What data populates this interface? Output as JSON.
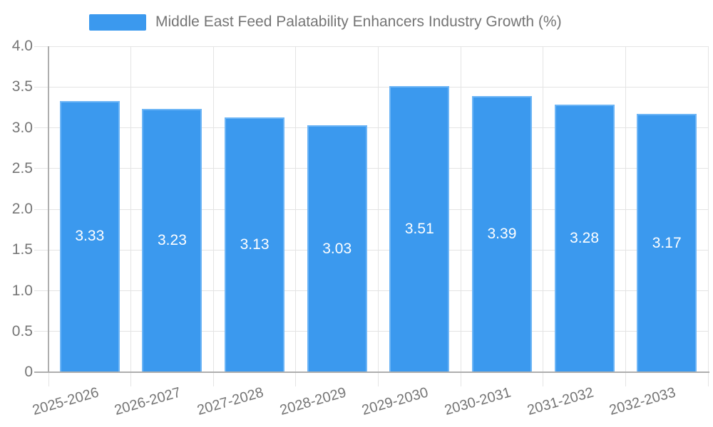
{
  "legend": {
    "label": "Middle East Feed Palatability Enhancers Industry Growth (%)"
  },
  "colors": {
    "bar_fill": "#3b99ee",
    "bar_border": "#6db5f6",
    "grid": "#e4e4e4",
    "axis": "#aeaeae",
    "text": "#757575",
    "value_label": "#ffffff",
    "background": "#ffffff"
  },
  "chart_data": {
    "type": "bar",
    "title": "Middle East Feed Palatability Enhancers Industry Growth (%)",
    "categories": [
      "2025-2026",
      "2026-2027",
      "2027-2028",
      "2028-2029",
      "2029-2030",
      "2030-2031",
      "2031-2032",
      "2032-2033"
    ],
    "values": [
      3.33,
      3.23,
      3.13,
      3.03,
      3.51,
      3.39,
      3.28,
      3.17
    ],
    "value_labels": [
      "3.33",
      "3.23",
      "3.13",
      "3.03",
      "3.51",
      "3.39",
      "3.28",
      "3.17"
    ],
    "xlabel": "",
    "ylabel": "",
    "ylim": [
      0,
      4
    ],
    "ytick_values": [
      0,
      0.5,
      1,
      1.5,
      2,
      2.5,
      3,
      3.5,
      4
    ],
    "ytick_labels": [
      "0",
      "0.5",
      "1.0",
      "1.5",
      "2.0",
      "2.5",
      "3.0",
      "3.5",
      "4.0"
    ],
    "grid": true,
    "legend_position": "top",
    "bar_label_position": "inside-center"
  }
}
